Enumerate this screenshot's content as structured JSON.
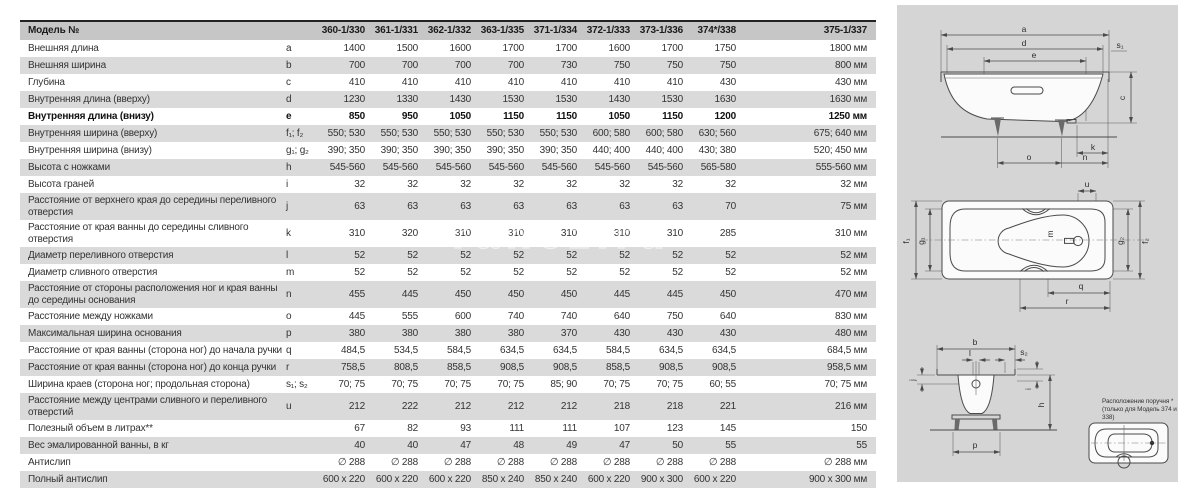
{
  "watermark": "ranez.ru",
  "table": {
    "header": {
      "label": "Модель №",
      "models": [
        "360-1/330",
        "361-1/331",
        "362-1/332",
        "363-1/335",
        "371-1/334",
        "372-1/333",
        "373-1/336",
        "374*/338",
        "375-1/337"
      ]
    },
    "rows": [
      {
        "label": "Внешняя длина",
        "letter": "a",
        "bold": false,
        "values": [
          "1400",
          "1500",
          "1600",
          "1700",
          "1700",
          "1600",
          "1700",
          "1750",
          "1800 мм"
        ]
      },
      {
        "label": "Внешняя ширина",
        "letter": "b",
        "bold": false,
        "values": [
          "700",
          "700",
          "700",
          "700",
          "730",
          "750",
          "750",
          "750",
          "800 мм"
        ]
      },
      {
        "label": "Глубина",
        "letter": "c",
        "bold": false,
        "values": [
          "410",
          "410",
          "410",
          "410",
          "410",
          "410",
          "410",
          "430",
          "430 мм"
        ]
      },
      {
        "label": "Внутренняя длина (вверху)",
        "letter": "d",
        "bold": false,
        "values": [
          "1230",
          "1330",
          "1430",
          "1530",
          "1530",
          "1430",
          "1530",
          "1630",
          "1630 мм"
        ]
      },
      {
        "label": "Внутренняя длина (внизу)",
        "letter": "e",
        "bold": true,
        "values": [
          "850",
          "950",
          "1050",
          "1150",
          "1150",
          "1050",
          "1150",
          "1200",
          "1250 мм"
        ]
      },
      {
        "label": "Внутренняя ширина (вверху)",
        "letter": "f₁; f₂",
        "bold": false,
        "values": [
          "550; 530",
          "550; 530",
          "550; 530",
          "550; 530",
          "550; 530",
          "600; 580",
          "600; 580",
          "630; 560",
          "675; 640 мм"
        ]
      },
      {
        "label": "Внутренняя ширина (внизу)",
        "letter": "g₁; g₂",
        "bold": false,
        "values": [
          "390; 350",
          "390; 350",
          "390; 350",
          "390; 350",
          "390; 350",
          "440; 400",
          "440; 400",
          "430; 380",
          "520; 450 мм"
        ]
      },
      {
        "label": "Высота с ножками",
        "letter": "h",
        "bold": false,
        "values": [
          "545-560",
          "545-560",
          "545-560",
          "545-560",
          "545-560",
          "545-560",
          "545-560",
          "565-580",
          "555-560 мм"
        ]
      },
      {
        "label": "Высота граней",
        "letter": "i",
        "bold": false,
        "values": [
          "32",
          "32",
          "32",
          "32",
          "32",
          "32",
          "32",
          "32",
          "32 мм"
        ]
      },
      {
        "label": "Расстояние от верхнего края до середины переливного отверстия",
        "letter": "j",
        "bold": false,
        "values": [
          "63",
          "63",
          "63",
          "63",
          "63",
          "63",
          "63",
          "70",
          "75 мм"
        ]
      },
      {
        "label": "Расстояние от края ванны до середины сливного отверстия",
        "letter": "k",
        "bold": false,
        "values": [
          "310",
          "320",
          "310",
          "310",
          "310",
          "310",
          "310",
          "285",
          "310 мм"
        ]
      },
      {
        "label": "Диаметр переливного отверстия",
        "letter": "l",
        "bold": false,
        "values": [
          "52",
          "52",
          "52",
          "52",
          "52",
          "52",
          "52",
          "52",
          "52 мм"
        ]
      },
      {
        "label": "Диаметр сливного отверстия",
        "letter": "m",
        "bold": false,
        "values": [
          "52",
          "52",
          "52",
          "52",
          "52",
          "52",
          "52",
          "52",
          "52 мм"
        ]
      },
      {
        "label": "Расстояние от стороны расположения ног и края ванны до середины основания",
        "letter": "n",
        "bold": false,
        "values": [
          "455",
          "445",
          "450",
          "450",
          "450",
          "445",
          "445",
          "450",
          "470 мм"
        ]
      },
      {
        "label": "Расстояние между ножками",
        "letter": "o",
        "bold": false,
        "values": [
          "445",
          "555",
          "600",
          "740",
          "740",
          "640",
          "750",
          "640",
          "830 мм"
        ]
      },
      {
        "label": "Максимальная ширина основания",
        "letter": "p",
        "bold": false,
        "values": [
          "380",
          "380",
          "380",
          "380",
          "370",
          "430",
          "430",
          "430",
          "480 мм"
        ]
      },
      {
        "label": "Расстояние от края ванны (сторона ног) до начала ручки",
        "letter": "q",
        "bold": false,
        "values": [
          "484,5",
          "534,5",
          "584,5",
          "634,5",
          "634,5",
          "584,5",
          "634,5",
          "634,5",
          "684,5 мм"
        ]
      },
      {
        "label": "Расстояние от края ванны (сторона ног) до конца ручки",
        "letter": "r",
        "bold": false,
        "values": [
          "758,5",
          "808,5",
          "858,5",
          "908,5",
          "908,5",
          "858,5",
          "908,5",
          "908,5",
          "958,5 мм"
        ]
      },
      {
        "label": "Ширина краев (сторона ног; продольная сторона)",
        "letter": "s₁; s₂",
        "bold": false,
        "values": [
          "70; 75",
          "70; 75",
          "70; 75",
          "70; 75",
          "85; 90",
          "70; 75",
          "70; 75",
          "60; 55",
          "70; 75 мм"
        ]
      },
      {
        "label": "Расстояние между центрами сливного и переливного отверстий",
        "letter": "u",
        "bold": false,
        "values": [
          "212",
          "222",
          "212",
          "212",
          "212",
          "218",
          "218",
          "221",
          "216 мм"
        ]
      },
      {
        "label": "Полезный объем в литрах**",
        "letter": "",
        "bold": false,
        "values": [
          "67",
          "82",
          "93",
          "111",
          "111",
          "107",
          "123",
          "145",
          "150"
        ]
      },
      {
        "label": "Вес эмалированной ванны, в кг",
        "letter": "",
        "bold": false,
        "values": [
          "40",
          "40",
          "47",
          "48",
          "49",
          "47",
          "50",
          "55",
          "55"
        ]
      },
      {
        "label": "Антислип",
        "letter": "",
        "bold": false,
        "values": [
          "∅ 288",
          "∅ 288",
          "∅ 288",
          "∅ 288",
          "∅ 288",
          "∅ 288",
          "∅ 288",
          "∅ 288",
          "∅ 288 мм"
        ]
      },
      {
        "label": "Полный антислип",
        "letter": "",
        "bold": false,
        "values": [
          "600 x 220",
          "600 x 220",
          "600 x 220",
          "850 x 240",
          "850 x 240",
          "600 x 220",
          "900 x 300",
          "600 x 220",
          "900 x 300 мм"
        ]
      }
    ]
  },
  "diagrams": {
    "side_view": {
      "labels": {
        "a": "a",
        "d": "d",
        "e": "e",
        "s1": "s₁",
        "c": "c",
        "k": "k",
        "o": "o",
        "n": "n"
      }
    },
    "plan_view": {
      "labels": {
        "u": "u",
        "m": "m",
        "f1": "f₁",
        "g1": "g₁",
        "g2": "g₂",
        "f2": "f₂",
        "q": "q",
        "r": "r"
      }
    },
    "end_view": {
      "labels": {
        "b": "b",
        "l": "l",
        "s2": "s₂",
        "j": "j",
        "i": "i",
        "h": "h",
        "p": "p"
      }
    },
    "handle_diagram": {
      "note_line1": "Расположение поручня *",
      "note_line2": "(только для Модель 374 и 338)"
    }
  }
}
